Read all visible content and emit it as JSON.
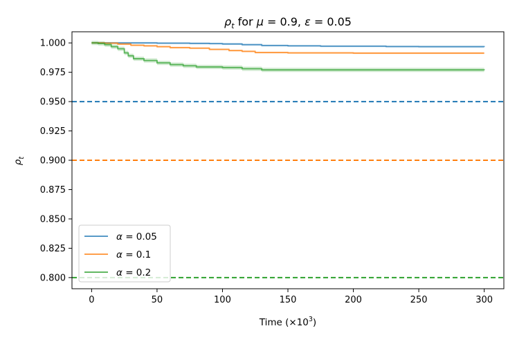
{
  "chart_data": {
    "type": "line",
    "title": "ρt for μ = 0.9, ε = 0.05",
    "title_parts": {
      "rho": "ρ",
      "t_sub": "t",
      "mid": " for ",
      "mu": "μ",
      "mu_eq": " = 0.9, ",
      "eps": "ε",
      "eps_eq": " = 0.05"
    },
    "xlabel": "Time (×10³)",
    "xlabel_parts": {
      "main": "Time (×10",
      "sup": "3",
      "close": ")"
    },
    "ylabel": "ρt",
    "ylabel_parts": {
      "rho": "ρ",
      "t_sub": "t"
    },
    "xlim": [
      -15,
      315
    ],
    "ylim": [
      0.7905,
      1.0095
    ],
    "xticks": [
      0,
      50,
      100,
      150,
      200,
      250,
      300
    ],
    "xtick_labels": [
      "0",
      "50",
      "100",
      "150",
      "200",
      "250",
      "300"
    ],
    "yticks": [
      0.8,
      0.825,
      0.85,
      0.875,
      0.9,
      0.925,
      0.95,
      0.975,
      1.0
    ],
    "ytick_labels": [
      "0.800",
      "0.825",
      "0.850",
      "0.875",
      "0.900",
      "0.925",
      "0.950",
      "0.975",
      "1.000"
    ],
    "grid": false,
    "legend_position": "lower-left",
    "series": [
      {
        "name": "α = 0.05",
        "greek": "α",
        "eq": " = 0.05",
        "color": "#1f77b4",
        "x": [
          0,
          25,
          50,
          75,
          90,
          100,
          115,
          130,
          150,
          175,
          200,
          225,
          250,
          275,
          300
        ],
        "values": [
          1.0,
          1.0,
          0.9998,
          0.9996,
          0.9994,
          0.9991,
          0.9985,
          0.9978,
          0.9975,
          0.9972,
          0.9972,
          0.9969,
          0.9968,
          0.9968,
          0.9966
        ],
        "band": 0.0008
      },
      {
        "name": "α = 0.1",
        "greek": "α",
        "eq": " = 0.1",
        "color": "#ff7f0e",
        "x": [
          0,
          10,
          20,
          30,
          40,
          50,
          60,
          75,
          90,
          105,
          115,
          125,
          150,
          200,
          250,
          300
        ],
        "values": [
          1.0,
          0.9998,
          0.999,
          0.998,
          0.9975,
          0.9968,
          0.996,
          0.9955,
          0.9945,
          0.9935,
          0.9928,
          0.9918,
          0.9915,
          0.9913,
          0.9913,
          0.9913
        ],
        "band": 0.0008
      },
      {
        "name": "α = 0.2",
        "greek": "α",
        "eq": " = 0.2",
        "color": "#2ca02c",
        "x": [
          0,
          5,
          10,
          15,
          20,
          25,
          28,
          32,
          40,
          50,
          60,
          70,
          80,
          100,
          115,
          130,
          150,
          200,
          250,
          300
        ],
        "values": [
          1.0,
          0.9995,
          0.9985,
          0.9968,
          0.995,
          0.9915,
          0.989,
          0.9865,
          0.985,
          0.983,
          0.9815,
          0.9805,
          0.9795,
          0.979,
          0.978,
          0.977,
          0.977,
          0.977,
          0.977,
          0.9768
        ],
        "band": 0.0018
      }
    ],
    "reference_lines": [
      {
        "y": 0.95,
        "color": "#1f77b4",
        "style": "dashed"
      },
      {
        "y": 0.9,
        "color": "#ff7f0e",
        "style": "dashed"
      },
      {
        "y": 0.8,
        "color": "#2ca02c",
        "style": "dashed"
      }
    ]
  }
}
